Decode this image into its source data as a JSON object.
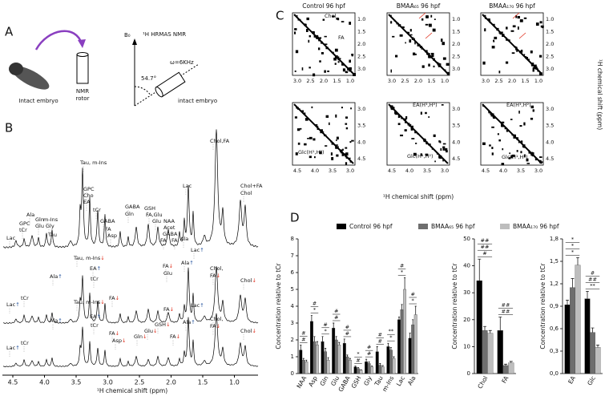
{
  "panel_a": {
    "label": "A",
    "embryo": "Intact embryo",
    "rotor": [
      "NMR",
      "rotor"
    ],
    "method": "¹H HRMAS NMR",
    "field": "B₀",
    "angle": "54.7°",
    "spin": "ω=6KHz",
    "sample": "intact embryo"
  },
  "panel_b": {
    "label": "B",
    "xlabel": "¹H chemical shift (ppm)",
    "xticks": [
      "4.5",
      "4.0",
      "3.5",
      "3.0",
      "2.5",
      "2.0",
      "1.5",
      "1.0"
    ],
    "spectra": [
      {
        "labels": [
          "Chol,FA",
          "Lac",
          "Chol+FA",
          "Chol",
          "Tau, m-Ins",
          "GPC",
          "Cho",
          "EA",
          "tCr",
          "GABA",
          "FA",
          "Asp",
          "GABA",
          "Gln",
          "GSH",
          "FA,Glu",
          "Glu",
          "NAA",
          "Acet",
          "GABA",
          "FA",
          "FA",
          "Ala",
          "Ala",
          "GPC",
          "tCr",
          "Lac",
          "Gln",
          "Glu",
          "m-Ins",
          "Gly",
          "Tau"
        ]
      },
      {
        "labels": [
          "Tau, m-Ins↓",
          "Lac↑",
          "Ala↑",
          "EA↑",
          "tCr",
          "FA↓",
          "FA↓",
          "Glu",
          "Ala↑",
          "Chol,",
          "FA↓",
          "Chol↓",
          "tCr",
          "Lac↑"
        ]
      },
      {
        "labels": [
          "Tau, m-Ins↓",
          "Lac↑",
          "Ala↑",
          "EA↑",
          "tCr",
          "FA↓",
          "Asp↓",
          "FA↓",
          "GSH↓",
          "Glu↓",
          "Gln↓",
          "FA↓",
          "Ala↑",
          "Chol,",
          "FA↓",
          "Chol↓",
          "tCr",
          "Lac↑"
        ]
      }
    ]
  },
  "panel_c": {
    "label": "C",
    "titles": [
      "Control 96 hpf",
      "BMAA₆₅ 96 hpf",
      "BMAA₁₇₀ 96 hpf"
    ],
    "top_xticks": [
      "3.0",
      "2.5",
      "2.0",
      "1.5",
      "1.0"
    ],
    "top_yticks": [
      "1.0",
      "1.5",
      "2.0",
      "2.5",
      "3.0"
    ],
    "bottom_xticks": [
      "4.5",
      "4.0",
      "3.5",
      "3.0"
    ],
    "bottom_yticks": [
      "3.0",
      "3.5",
      "4.0",
      "4.5"
    ],
    "chol": "Chol",
    "fa": "FA",
    "ea": "EA(H¹,H²)",
    "glc": "Glc(H¹,H²)",
    "xlabel": "¹H chemical shift (ppm)",
    "ylabel": "¹H chemical shift (ppm)"
  },
  "panel_d": {
    "label": "D"
  },
  "chart_data": [
    {
      "type": "bar",
      "ylabel": "Concentration relative to tCr",
      "categories": [
        "NAA",
        "Asp",
        "Gln",
        "Glu",
        "GABA",
        "GSH",
        "Gly",
        "Tau",
        "m-Ins",
        "Lac",
        "Ala"
      ],
      "series": [
        {
          "name": "Control 96 hpf",
          "color": "#000000",
          "values": [
            1.4,
            3.1,
            1.9,
            2.7,
            1.8,
            0.4,
            0.7,
            1.3,
            1.6,
            3.2,
            2.1
          ],
          "errors": [
            0.3,
            0.35,
            0.3,
            0.3,
            0.25,
            0.05,
            0.15,
            0.3,
            0.2,
            0.15,
            0.3
          ]
        },
        {
          "name": "BMAA₆₅ 96 hpf",
          "color": "#6e6e6e",
          "values": [
            0.8,
            1.9,
            1.3,
            2.0,
            1.0,
            0.3,
            0.6,
            0.5,
            1.4,
            3.8,
            2.9
          ],
          "errors": [
            0.1,
            0.3,
            0.2,
            0.2,
            0.1,
            0.05,
            0.1,
            0.1,
            0.15,
            0.3,
            0.3
          ]
        },
        {
          "name": "BMAA₁₇₀ 96 hpf",
          "color": "#bdbdbd",
          "values": [
            0.7,
            1.7,
            0.8,
            1.7,
            0.8,
            0.2,
            0.4,
            0.4,
            0.9,
            5.0,
            3.5
          ],
          "errors": [
            0.1,
            0.2,
            0.15,
            0.15,
            0.1,
            0.03,
            0.05,
            0.08,
            0.1,
            0.7,
            0.5
          ]
        }
      ],
      "ylim": [
        0,
        8
      ],
      "yticks": [
        0,
        1,
        2,
        3,
        4,
        5,
        6,
        7,
        8
      ],
      "annotations": [
        {
          "category": 0,
          "label": "#"
        },
        {
          "category": 0,
          "label": "#"
        },
        {
          "category": 1,
          "label": "*"
        },
        {
          "category": 1,
          "label": "#"
        },
        {
          "category": 2,
          "label": "*"
        },
        {
          "category": 2,
          "label": "#"
        },
        {
          "category": 3,
          "label": "#"
        },
        {
          "category": 3,
          "label": "#"
        },
        {
          "category": 4,
          "label": "#"
        },
        {
          "category": 4,
          "label": "#"
        },
        {
          "category": 5,
          "label": "#"
        },
        {
          "category": 5,
          "label": "*"
        },
        {
          "category": 6,
          "label": "#"
        },
        {
          "category": 6,
          "label": "#"
        },
        {
          "category": 7,
          "label": "#"
        },
        {
          "category": 7,
          "label": "#"
        },
        {
          "category": 8,
          "label": "*"
        },
        {
          "category": 8,
          "label": "**"
        },
        {
          "category": 9,
          "label": "*"
        },
        {
          "category": 9,
          "label": "#"
        },
        {
          "category": 10,
          "label": "*"
        },
        {
          "category": 10,
          "label": "#"
        }
      ]
    },
    {
      "type": "bar",
      "ylabel": "Concentration relative to tCr",
      "categories": [
        "Chol",
        "FA"
      ],
      "series": [
        {
          "color": "#000000",
          "values": [
            34.5,
            16
          ],
          "errors": [
            8,
            5
          ]
        },
        {
          "color": "#6e6e6e",
          "values": [
            16,
            3
          ],
          "errors": [
            1.5,
            0.5
          ]
        },
        {
          "color": "#bdbdbd",
          "values": [
            15,
            4
          ],
          "errors": [
            1,
            0.5
          ]
        }
      ],
      "ylim": [
        0,
        50
      ],
      "yticks": [
        0,
        10,
        20,
        30,
        40,
        50
      ],
      "annotations": [
        {
          "category": 0,
          "label": "#"
        },
        {
          "category": 0,
          "label": "##"
        },
        {
          "category": 0,
          "label": "##"
        },
        {
          "category": 1,
          "label": "##"
        },
        {
          "category": 1,
          "label": "##"
        }
      ]
    },
    {
      "type": "bar",
      "ylabel": "Concentration relative to tCr",
      "categories": [
        "EA",
        "Glc"
      ],
      "series": [
        {
          "color": "#000000",
          "values": [
            0.92,
            1.0
          ],
          "errors": [
            0.06,
            0.1
          ]
        },
        {
          "color": "#6e6e6e",
          "values": [
            1.15,
            0.55
          ],
          "errors": [
            0.12,
            0.06
          ]
        },
        {
          "color": "#bdbdbd",
          "values": [
            1.45,
            0.35
          ],
          "errors": [
            0.1,
            0.03
          ]
        }
      ],
      "ylim": [
        0,
        1.8
      ],
      "yticks": [
        {
          "value": 0,
          "label": "0,0"
        },
        {
          "value": 0.3,
          "label": "0,3"
        },
        {
          "value": 0.6,
          "label": "0,6"
        },
        {
          "value": 0.9,
          "label": "0,9"
        },
        {
          "value": 1.2,
          "label": "1,2"
        },
        {
          "value": 1.5,
          "label": "1,5"
        },
        {
          "value": 1.8,
          "label": "1,8"
        }
      ],
      "annotations": [
        {
          "category": 0,
          "label": "*"
        },
        {
          "category": 0,
          "label": "*"
        },
        {
          "category": 0,
          "label": "*"
        },
        {
          "category": 1,
          "label": "**"
        },
        {
          "category": 1,
          "label": "##"
        },
        {
          "category": 1,
          "label": "#"
        }
      ]
    }
  ]
}
